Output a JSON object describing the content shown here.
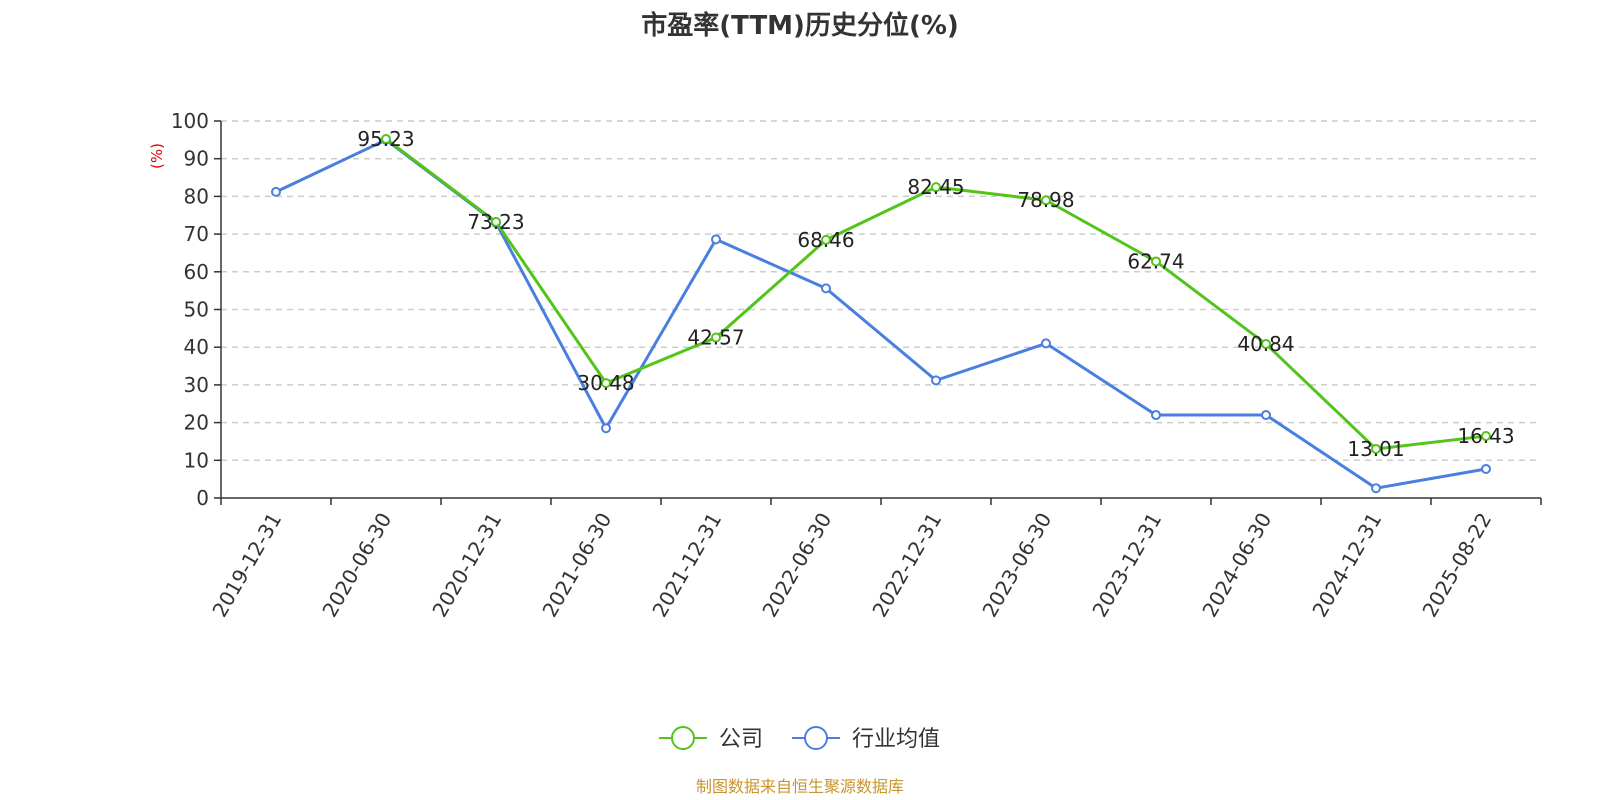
{
  "chart_data": {
    "type": "line",
    "title": "市盈率(TTM)历史分位(%)",
    "ylabel": "(%)",
    "ylim": [
      0,
      100
    ],
    "yticks": [
      0,
      10,
      20,
      30,
      40,
      50,
      60,
      70,
      80,
      90,
      100
    ],
    "grid": true,
    "categories": [
      "2019-12-31",
      "2020-06-30",
      "2020-12-31",
      "2021-06-30",
      "2021-12-31",
      "2022-06-30",
      "2022-12-31",
      "2023-06-30",
      "2023-12-31",
      "2024-06-30",
      "2024-12-31",
      "2025-08-22"
    ],
    "series": [
      {
        "name": "公司",
        "color": "#52c41a",
        "values": [
          null,
          95.23,
          73.23,
          30.48,
          42.57,
          68.46,
          82.45,
          78.98,
          62.74,
          40.84,
          13.01,
          16.43
        ],
        "labels": [
          "",
          "95.23",
          "73.23",
          "30.48",
          "42.57",
          "68.46",
          "82.45",
          "78.98",
          "62.74",
          "40.84",
          "13.01",
          "16.43"
        ]
      },
      {
        "name": "行业均值",
        "color": "#4a7fe0",
        "values": [
          81.2,
          95.0,
          73.0,
          18.5,
          68.6,
          55.6,
          31.2,
          41.0,
          22.0,
          22.0,
          2.6,
          7.7
        ]
      }
    ],
    "legend_position": "bottom-center",
    "source": "制图数据来自恒生聚源数据库"
  }
}
